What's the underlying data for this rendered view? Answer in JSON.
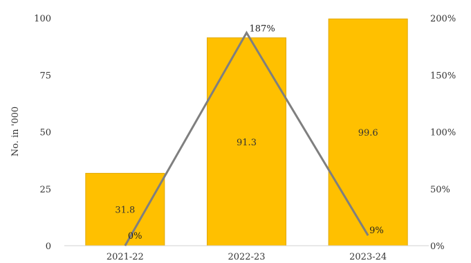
{
  "chart_data": {
    "type": "bar",
    "title": "",
    "categories": [
      "2021-22",
      "2022-23",
      "2023-24"
    ],
    "xlabel": "",
    "ylabel": "No. in '000",
    "ylim": [
      0,
      100
    ],
    "y_ticks": [
      "0",
      "25",
      "50",
      "75",
      "100"
    ],
    "y2lim": [
      0,
      200
    ],
    "y2_ticks": [
      "0%",
      "50%",
      "100%",
      "150%",
      "200%"
    ],
    "grid": false,
    "series": [
      {
        "type": "bar",
        "axis": "left",
        "values": [
          31.8,
          91.3,
          99.6
        ],
        "labels": [
          "31.8",
          "91.3",
          "99.6"
        ],
        "color": "#FFC000"
      },
      {
        "type": "line",
        "axis": "right",
        "values": [
          0,
          187,
          9
        ],
        "labels": [
          "0%",
          "187%",
          "9%"
        ],
        "color": "#7F7F7F"
      }
    ]
  }
}
